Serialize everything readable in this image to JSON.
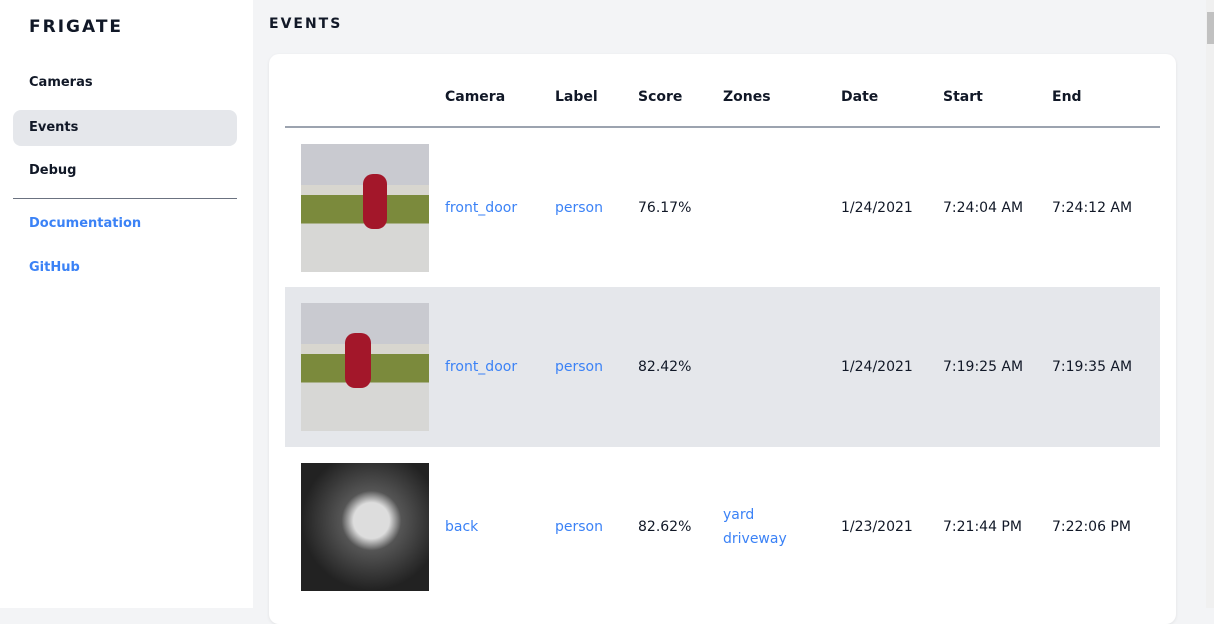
{
  "sidebar": {
    "logo": "FRIGATE",
    "items": [
      {
        "label": "Cameras"
      },
      {
        "label": "Events"
      },
      {
        "label": "Debug"
      }
    ],
    "links": [
      {
        "label": "Documentation"
      },
      {
        "label": "GitHub"
      }
    ]
  },
  "page_title": "EVENTS",
  "table": {
    "headers": [
      "",
      "Camera",
      "Label",
      "Score",
      "Zones",
      "Date",
      "Start",
      "End"
    ],
    "rows": [
      {
        "camera": "front_door",
        "label": "person",
        "score": "76.17%",
        "zones": [
          "",
          ""
        ],
        "date": "1/24/2021",
        "start": "7:24:04 AM",
        "end": "7:24:12 AM"
      },
      {
        "camera": "front_door",
        "label": "person",
        "score": "82.42%",
        "zones": [
          "",
          ""
        ],
        "date": "1/24/2021",
        "start": "7:19:25 AM",
        "end": "7:19:35 AM"
      },
      {
        "camera": "back",
        "label": "person",
        "score": "82.62%",
        "zones": [
          "yard",
          "driveway"
        ],
        "date": "1/23/2021",
        "start": "7:21:44 PM",
        "end": "7:22:06 PM"
      }
    ]
  }
}
